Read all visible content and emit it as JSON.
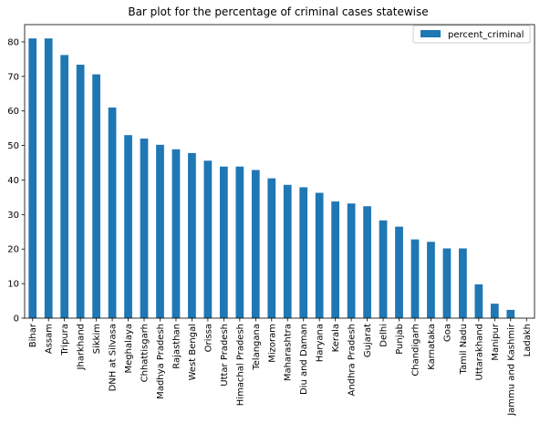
{
  "chart_data": {
    "type": "bar",
    "title": "Bar plot for the percentage of criminal cases statewise",
    "xlabel": "",
    "ylabel": "",
    "ylim": [
      0,
      85
    ],
    "yticks": [
      0,
      10,
      20,
      30,
      40,
      50,
      60,
      70,
      80
    ],
    "grid": false,
    "legend_position": "top-right",
    "colors": {
      "bar": "#1f77b4",
      "axis": "#000000"
    },
    "categories": [
      "Bihar",
      "Assam",
      "Tripura",
      "Jharkhand",
      "Sikkim",
      "DNH at Silvasa",
      "Meghalaya",
      "Chhattisgarh",
      "Madhya Pradesh",
      "Rajasthan",
      "West Bengal",
      "Orissa",
      "Uttar Pradesh",
      "Himachal Pradesh",
      "Telangana",
      "Mizoram",
      "Maharashtra",
      "Diu and Daman",
      "Haryana",
      "Kerala",
      "Andhra Pradesh",
      "Gujarat",
      "Delhi",
      "Punjab",
      "Chandigarh",
      "Karnataka",
      "Goa",
      "Tamil Nadu",
      "Uttarakhand",
      "Manipur",
      "Jammu and Kashmir",
      "Ladakh"
    ],
    "series": [
      {
        "name": "percent_criminal",
        "values": [
          81.0,
          81.0,
          76.2,
          73.4,
          70.6,
          61.0,
          53.0,
          52.0,
          50.2,
          48.9,
          47.8,
          45.6,
          43.9,
          43.9,
          42.9,
          40.5,
          38.6,
          37.9,
          36.3,
          33.8,
          33.2,
          32.4,
          28.3,
          26.5,
          22.8,
          22.1,
          20.2,
          20.2,
          9.8,
          4.2,
          2.4,
          0.0
        ]
      }
    ]
  }
}
